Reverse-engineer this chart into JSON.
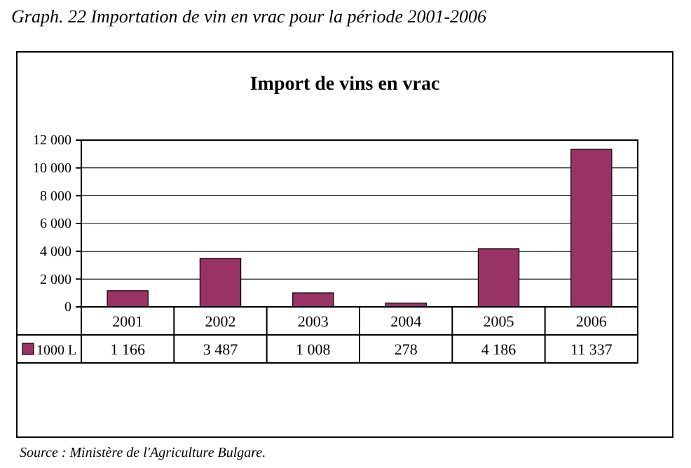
{
  "chart_data": {
    "type": "bar",
    "title": "Graph. 22 Importation de vin en vrac pour la période 2001-2006",
    "subtitle": "Import de vins en vrac",
    "categories": [
      "2001",
      "2002",
      "2003",
      "2004",
      "2005",
      "2006"
    ],
    "series": [
      {
        "name": "1000 L",
        "color": "#993366",
        "values": [
          1166,
          3487,
          1008,
          278,
          4186,
          11337
        ],
        "value_labels": [
          "1 166",
          "3 487",
          "1 008",
          "278",
          "4 186",
          "11 337"
        ]
      }
    ],
    "ylim": [
      0,
      12000
    ],
    "yticks": [
      {
        "value": 0,
        "label": "0"
      },
      {
        "value": 2000,
        "label": "2 000"
      },
      {
        "value": 4000,
        "label": "4 000"
      },
      {
        "value": 6000,
        "label": "6 000"
      },
      {
        "value": 8000,
        "label": "8 000"
      },
      {
        "value": 10000,
        "label": "10 000"
      },
      {
        "value": 12000,
        "label": "12 000"
      }
    ],
    "grid": "y",
    "legend": "bottom",
    "annotations": [
      "Source : Ministère de l'Agriculture Bulgare."
    ]
  }
}
